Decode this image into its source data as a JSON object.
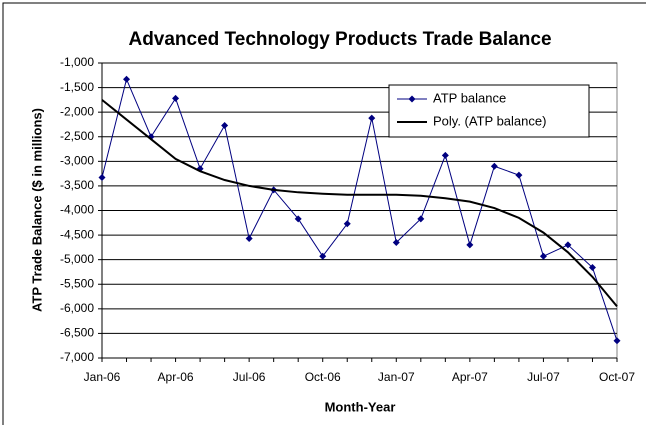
{
  "chart_data": {
    "type": "line",
    "title": "Advanced Technology Products Trade Balance",
    "xlabel": "Month-Year",
    "ylabel": "ATP Trade Balance ($ in millions)",
    "categories": [
      "Jan-06",
      null,
      null,
      "Apr-06",
      null,
      null,
      "Jul-06",
      null,
      null,
      "Oct-06",
      null,
      null,
      "Jan-07",
      null,
      null,
      "Apr-07",
      null,
      null,
      "Jul-07",
      null,
      null,
      "Oct-07"
    ],
    "series": [
      {
        "name": "ATP balance",
        "color": "#000080",
        "marker": "diamond",
        "values": [
          -3330,
          -1330,
          -2500,
          -1720,
          -3150,
          -2270,
          -4570,
          -3580,
          -4170,
          -4930,
          -4270,
          -2120,
          -4650,
          -4170,
          -2880,
          -4700,
          -3100,
          -3280,
          -4930,
          -4700,
          -5160,
          -6650
        ]
      },
      {
        "name": "Poly. (ATP balance)",
        "color": "#000000",
        "values": [
          -1750,
          -2150,
          -2550,
          -2950,
          -3200,
          -3380,
          -3500,
          -3580,
          -3630,
          -3660,
          -3680,
          -3680,
          -3680,
          -3700,
          -3750,
          -3820,
          -3950,
          -4150,
          -4450,
          -4850,
          -5350,
          -5950
        ]
      }
    ],
    "ylim": [
      -7000,
      -1000
    ],
    "yticks": [
      {
        "value": -7000,
        "label": "-7,000"
      },
      {
        "value": -6500,
        "label": "-6,500"
      },
      {
        "value": -6000,
        "label": "-6,000"
      },
      {
        "value": -5500,
        "label": "-5,500"
      },
      {
        "value": -5000,
        "label": "-5,000"
      },
      {
        "value": -4500,
        "label": "-4,500"
      },
      {
        "value": -4000,
        "label": "-4,000"
      },
      {
        "value": -3500,
        "label": "-3,500"
      },
      {
        "value": -3000,
        "label": "-3,000"
      },
      {
        "value": -2500,
        "label": "-2,500"
      },
      {
        "value": -2000,
        "label": "-2,000"
      },
      {
        "value": -1500,
        "label": "-1,500"
      },
      {
        "value": -1000,
        "label": "-1,000"
      }
    ],
    "grid": true,
    "legend": "top-right"
  }
}
